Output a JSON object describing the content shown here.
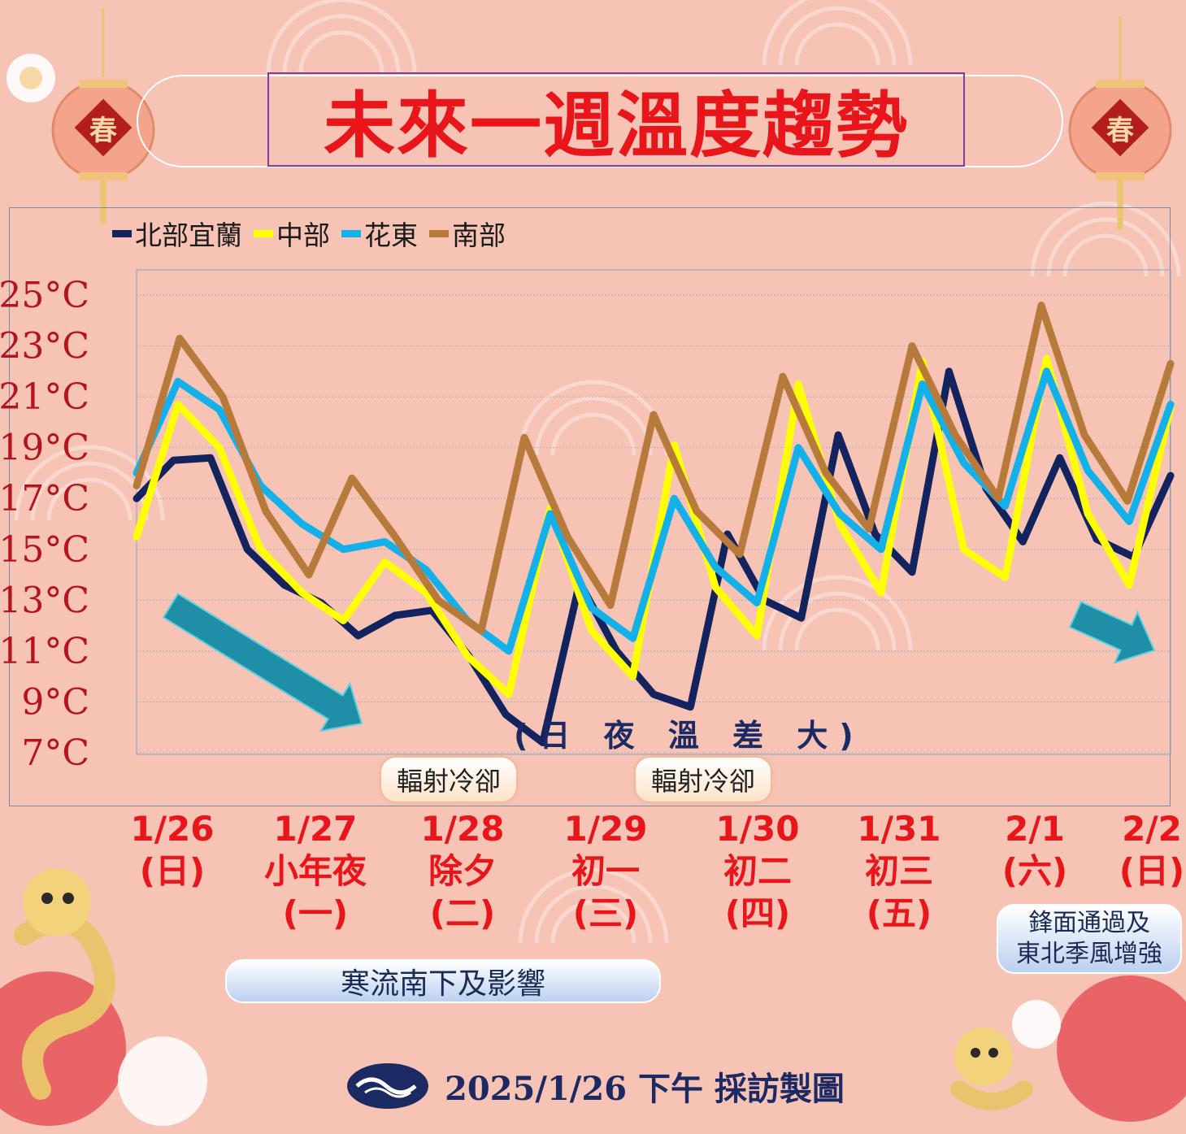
{
  "title": "未來一週溫度趨勢",
  "lantern_label": "春",
  "legend": [
    {
      "label": "北部宜蘭",
      "color": "#13235e"
    },
    {
      "label": "中部",
      "color": "#ffff00"
    },
    {
      "label": "花東",
      "color": "#14b0ea"
    },
    {
      "label": "南部",
      "color": "#b87a3a"
    }
  ],
  "chart_data": {
    "type": "line",
    "ylim": [
      7,
      25
    ],
    "y_ticks": [
      "25°C",
      "23°C",
      "21°C",
      "19°C",
      "17°C",
      "15°C",
      "13°C",
      "11°C",
      "9°C",
      "7°C"
    ],
    "x_labels": [
      [
        "1/26",
        "(日)"
      ],
      [
        "1/27",
        "小年夜",
        "(一)"
      ],
      [
        "1/28",
        "除夕",
        "(二)"
      ],
      [
        "1/29",
        "初一",
        "(三)"
      ],
      [
        "1/30",
        "初二",
        "(四)"
      ],
      [
        "1/31",
        "初三",
        "(五)"
      ],
      [
        "2/1",
        "(六)"
      ],
      [
        "2/2",
        "(日)"
      ]
    ],
    "series": [
      {
        "name": "北部宜蘭",
        "color": "#13235e",
        "values": [
          17.0,
          18.5,
          18.6,
          15.0,
          13.6,
          12.9,
          11.6,
          12.4,
          12.6,
          10.8,
          8.5,
          7.4,
          13.7,
          11.0,
          9.3,
          8.8,
          15.6,
          13.0,
          12.3,
          19.5,
          15.6,
          14.1,
          22.0,
          17.4,
          15.3,
          18.6,
          15.4,
          14.7,
          17.9
        ]
      },
      {
        "name": "中部",
        "color": "#ffff00",
        "values": [
          15.5,
          20.7,
          19.0,
          15.0,
          13.3,
          12.2,
          14.5,
          13.3,
          10.8,
          9.3,
          16.6,
          11.8,
          10.0,
          19.1,
          13.5,
          11.6,
          21.5,
          16.0,
          13.3,
          22.4,
          15.0,
          13.9,
          22.5,
          16.4,
          13.6,
          20.6
        ]
      },
      {
        "name": "花東",
        "color": "#14b0ea",
        "values": [
          18.0,
          21.6,
          20.5,
          17.5,
          16.0,
          15.0,
          15.3,
          14.2,
          12.2,
          11.0,
          16.4,
          12.7,
          11.5,
          17.0,
          14.3,
          12.9,
          19.0,
          16.4,
          15.0,
          21.5,
          18.4,
          16.7,
          22.0,
          18.1,
          16.1,
          20.7
        ]
      },
      {
        "name": "南部",
        "color": "#b87a3a",
        "values": [
          17.5,
          23.3,
          21.0,
          16.5,
          14.0,
          17.8,
          15.5,
          13.0,
          11.8,
          19.4,
          15.5,
          12.8,
          20.3,
          16.5,
          14.8,
          21.8,
          18.0,
          15.8,
          23.0,
          19.5,
          17.0,
          24.6,
          19.5,
          16.9,
          22.3
        ]
      }
    ]
  },
  "annotations": {
    "day_night": "(日 夜 溫 差 大)",
    "radiative_cooling_1": "輻射冷卻",
    "radiative_cooling_2": "輻射冷卻",
    "cold_surge": "寒流南下及影響",
    "front_line1": "鋒面通過及",
    "front_line2": "東北季風增強"
  },
  "footer": {
    "text": "2025/1/26 下午 採訪製圖"
  }
}
